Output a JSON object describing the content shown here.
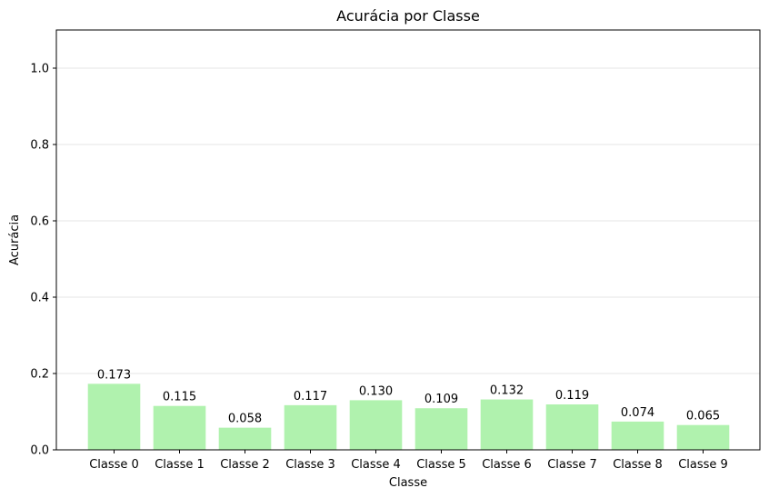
{
  "chart_data": {
    "type": "bar",
    "title": "Acurácia por Classe",
    "xlabel": "Classe",
    "ylabel": "Acurácia",
    "ylim": [
      0,
      1.1
    ],
    "yticks": [
      0.0,
      0.2,
      0.4,
      0.6,
      0.8,
      1.0
    ],
    "ytick_labels": [
      "0.0",
      "0.2",
      "0.4",
      "0.6",
      "0.8",
      "1.0"
    ],
    "categories": [
      "Classe 0",
      "Classe 1",
      "Classe 2",
      "Classe 3",
      "Classe 4",
      "Classe 5",
      "Classe 6",
      "Classe 7",
      "Classe 8",
      "Classe 9"
    ],
    "values": [
      0.173,
      0.115,
      0.058,
      0.117,
      0.13,
      0.109,
      0.132,
      0.119,
      0.074,
      0.065
    ],
    "value_labels": [
      "0.173",
      "0.115",
      "0.058",
      "0.117",
      "0.130",
      "0.109",
      "0.132",
      "0.119",
      "0.074",
      "0.065"
    ],
    "bar_color": "#b0f2ae",
    "grid": "horizontal",
    "grid_color": "#e6e6e6"
  }
}
